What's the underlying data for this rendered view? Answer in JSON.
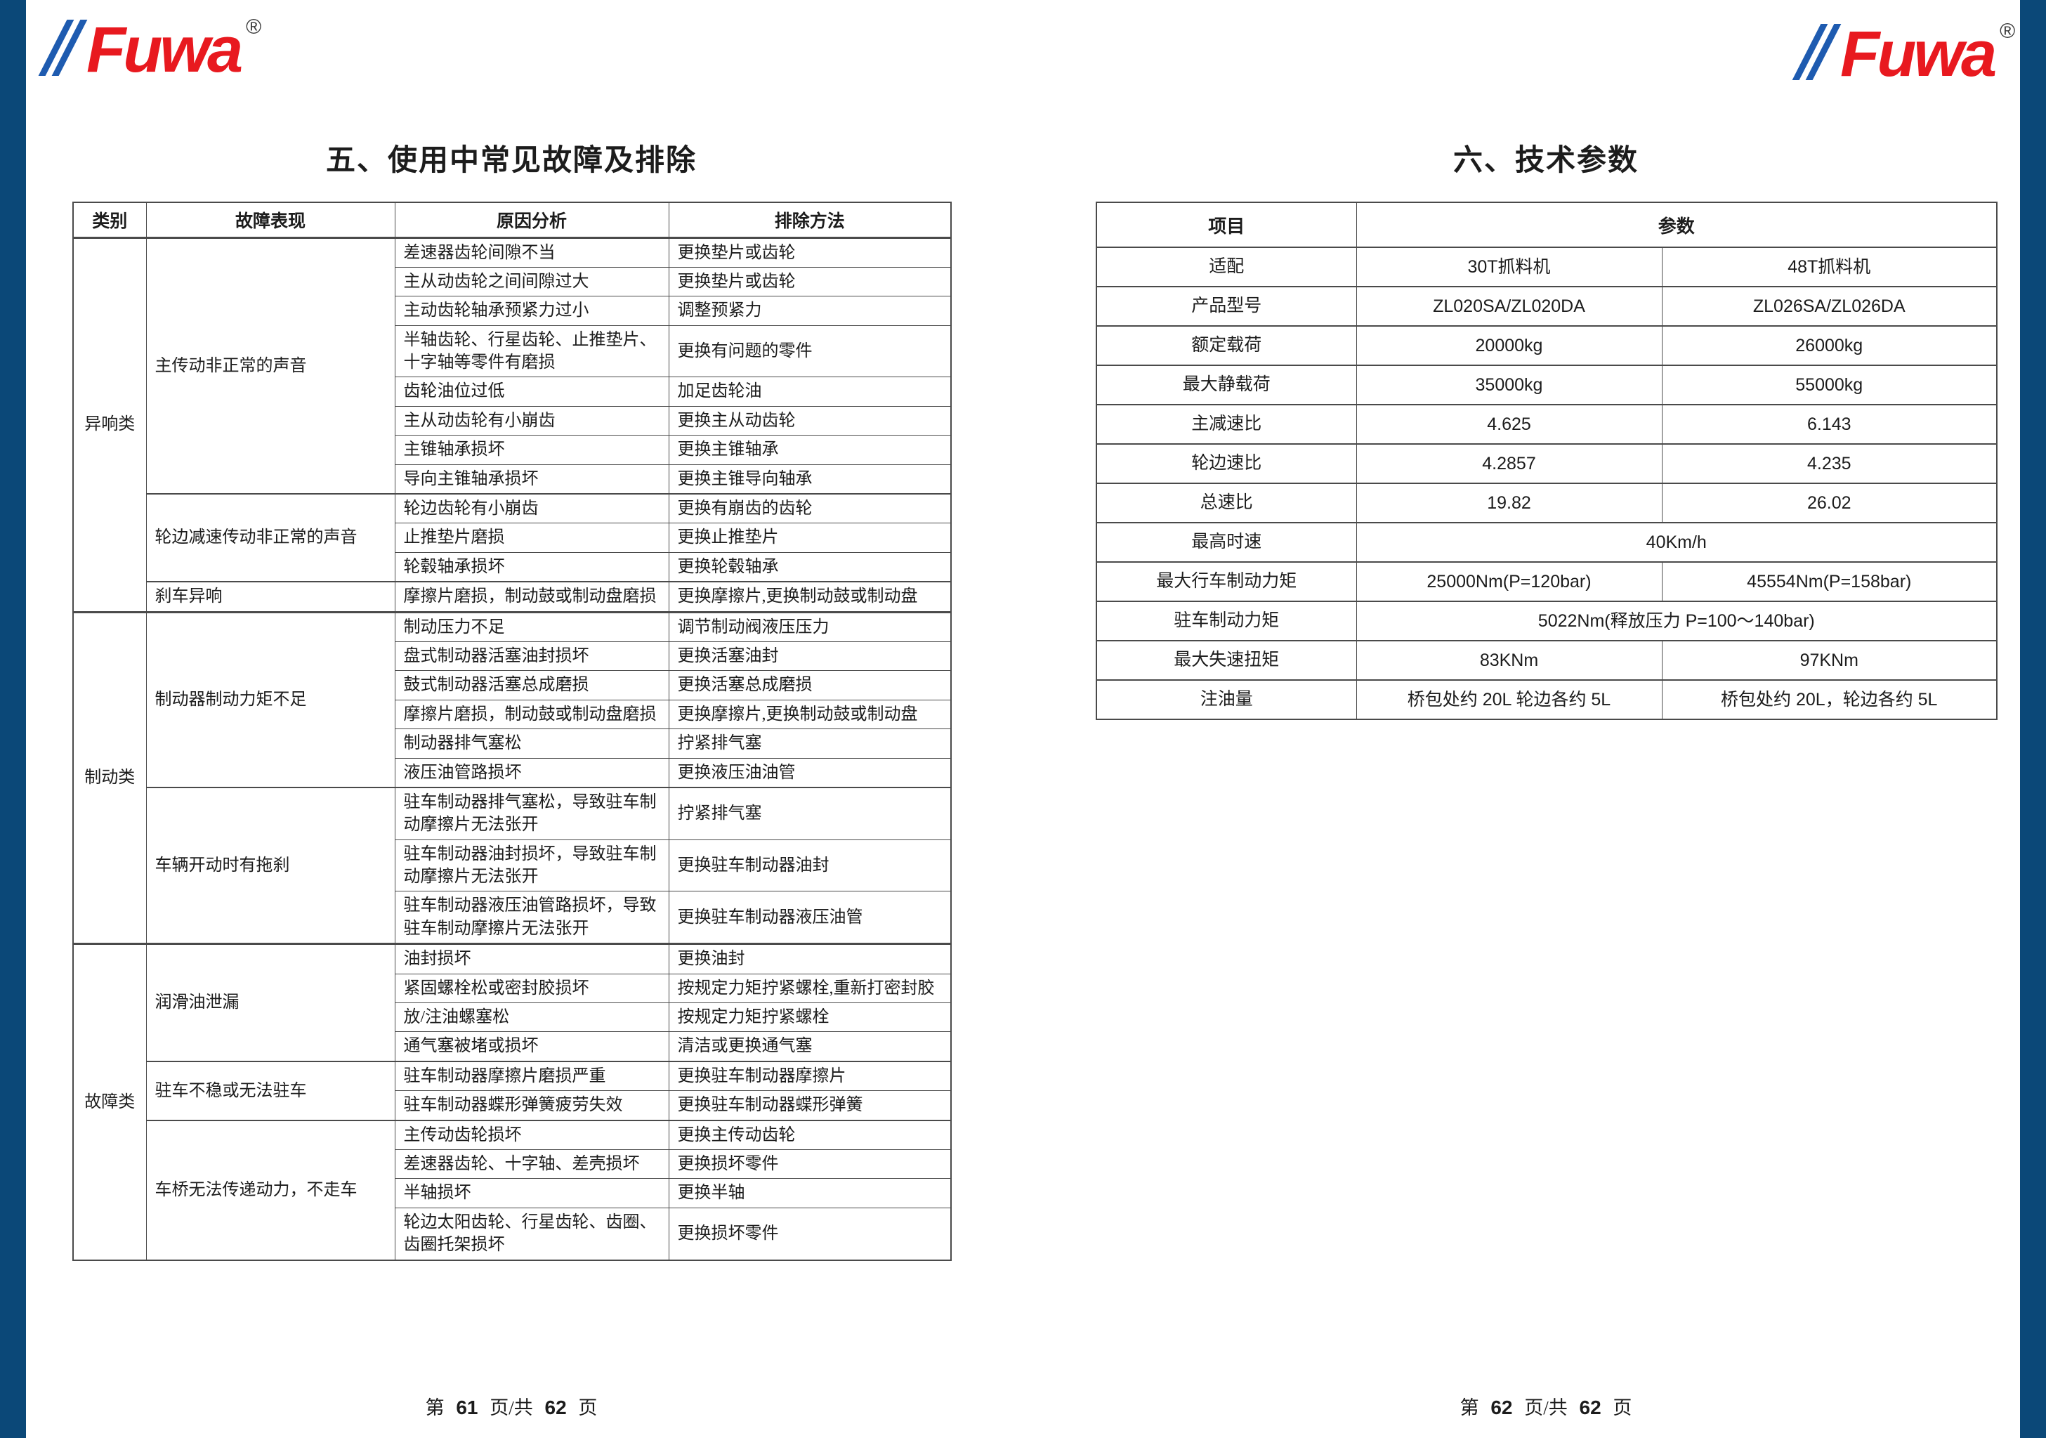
{
  "brand": {
    "logo_text": "Fuwa",
    "registered_mark": "®",
    "logo_red": "#e8191f",
    "logo_blue": "#1e5bb0",
    "edge_bar_blue": "#0b4878"
  },
  "left_page": {
    "title": "五、使用中常见故障及排除",
    "fault_table": {
      "headers": [
        "类别",
        "故障表现",
        "原因分析",
        "排除方法"
      ],
      "sections": [
        {
          "category": "异响类",
          "groups": [
            {
              "fault": "主传动非正常的声音",
              "rows": [
                [
                  "差速器齿轮间隙不当",
                  "更换垫片或齿轮"
                ],
                [
                  "主从动齿轮之间间隙过大",
                  "更换垫片或齿轮"
                ],
                [
                  "主动齿轮轴承预紧力过小",
                  "调整预紧力"
                ],
                [
                  "半轴齿轮、行星齿轮、止推垫片、十字轴等零件有磨损",
                  "更换有问题的零件"
                ],
                [
                  "齿轮油位过低",
                  "加足齿轮油"
                ],
                [
                  "主从动齿轮有小崩齿",
                  "更换主从动齿轮"
                ],
                [
                  "主锥轴承损坏",
                  "更换主锥轴承"
                ],
                [
                  "导向主锥轴承损坏",
                  "更换主锥导向轴承"
                ]
              ]
            },
            {
              "fault": "轮边减速传动非正常的声音",
              "rows": [
                [
                  "轮边齿轮有小崩齿",
                  "更换有崩齿的齿轮"
                ],
                [
                  "止推垫片磨损",
                  "更换止推垫片"
                ],
                [
                  "轮毂轴承损坏",
                  "更换轮毂轴承"
                ]
              ]
            },
            {
              "fault": "刹车异响",
              "rows": [
                [
                  "摩擦片磨损，制动鼓或制动盘磨损",
                  "更换摩擦片,更换制动鼓或制动盘"
                ]
              ]
            }
          ]
        },
        {
          "category": "制动类",
          "groups": [
            {
              "fault": "制动器制动力矩不足",
              "rows": [
                [
                  "制动压力不足",
                  "调节制动阀液压压力"
                ],
                [
                  "盘式制动器活塞油封损坏",
                  "更换活塞油封"
                ],
                [
                  "鼓式制动器活塞总成磨损",
                  "更换活塞总成磨损"
                ],
                [
                  "摩擦片磨损，制动鼓或制动盘磨损",
                  "更换摩擦片,更换制动鼓或制动盘"
                ],
                [
                  "制动器排气塞松",
                  "拧紧排气塞"
                ],
                [
                  "液压油管路损坏",
                  "更换液压油油管"
                ]
              ]
            },
            {
              "fault": "车辆开动时有拖刹",
              "rows": [
                [
                  "驻车制动器排气塞松，导致驻车制动摩擦片无法张开",
                  "拧紧排气塞"
                ],
                [
                  "驻车制动器油封损坏，导致驻车制动摩擦片无法张开",
                  "更换驻车制动器油封"
                ],
                [
                  "驻车制动器液压油管路损坏，导致驻车制动摩擦片无法张开",
                  "更换驻车制动器液压油管"
                ]
              ]
            }
          ]
        },
        {
          "category": "故障类",
          "groups": [
            {
              "fault": "润滑油泄漏",
              "rows": [
                [
                  "油封损坏",
                  "更换油封"
                ],
                [
                  "紧固螺栓松或密封胶损坏",
                  "按规定力矩拧紧螺栓,重新打密封胶"
                ],
                [
                  "放/注油螺塞松",
                  "按规定力矩拧紧螺栓"
                ],
                [
                  "通气塞被堵或损坏",
                  "清洁或更换通气塞"
                ]
              ]
            },
            {
              "fault": "驻车不稳或无法驻车",
              "rows": [
                [
                  "驻车制动器摩擦片磨损严重",
                  "更换驻车制动器摩擦片"
                ],
                [
                  "驻车制动器蝶形弹簧疲劳失效",
                  "更换驻车制动器蝶形弹簧"
                ]
              ]
            },
            {
              "fault": "车桥无法传递动力，不走车",
              "rows": [
                [
                  "主传动齿轮损坏",
                  "更换主传动齿轮"
                ],
                [
                  "差速器齿轮、十字轴、差壳损坏",
                  "更换损坏零件"
                ],
                [
                  "半轴损坏",
                  "更换半轴"
                ],
                [
                  "轮边太阳齿轮、行星齿轮、齿圈、齿圈托架损坏",
                  "更换损坏零件"
                ]
              ]
            }
          ]
        }
      ]
    },
    "footer": {
      "label_first": "第",
      "page_number": "61",
      "label_mid": "页/共",
      "total_pages": "62",
      "label_last": "页"
    }
  },
  "right_page": {
    "title": "六、技术参数",
    "spec_table": {
      "headers": [
        "项目",
        "参数"
      ],
      "rows": [
        {
          "item": "适配",
          "values": [
            "30T抓料机",
            "48T抓料机"
          ]
        },
        {
          "item": "产品型号",
          "values": [
            "ZL020SA/ZL020DA",
            "ZL026SA/ZL026DA"
          ]
        },
        {
          "item": "额定载荷",
          "values": [
            "20000kg",
            "26000kg"
          ]
        },
        {
          "item": "最大静载荷",
          "values": [
            "35000kg",
            "55000kg"
          ]
        },
        {
          "item": "主减速比",
          "values": [
            "4.625",
            "6.143"
          ]
        },
        {
          "item": "轮边速比",
          "values": [
            "4.2857",
            "4.235"
          ]
        },
        {
          "item": "总速比",
          "values": [
            "19.82",
            "26.02"
          ]
        },
        {
          "item": "最高时速",
          "values": [
            "40Km/h"
          ],
          "span": true
        },
        {
          "item": "最大行车制动力矩",
          "values": [
            "25000Nm(P=120bar)",
            "45554Nm(P=158bar)"
          ]
        },
        {
          "item": "驻车制动力矩",
          "values": [
            "5022Nm(释放压力 P=100～140bar)"
          ],
          "span": true
        },
        {
          "item": "最大失速扭矩",
          "values": [
            "83KNm",
            "97KNm"
          ]
        },
        {
          "item": "注油量",
          "values": [
            "桥包处约 20L 轮边各约 5L",
            "桥包处约 20L，轮边各约 5L"
          ]
        }
      ]
    },
    "footer": {
      "label_first": "第",
      "page_number": "62",
      "label_mid": "页/共",
      "total_pages": "62",
      "label_last": "页"
    }
  }
}
